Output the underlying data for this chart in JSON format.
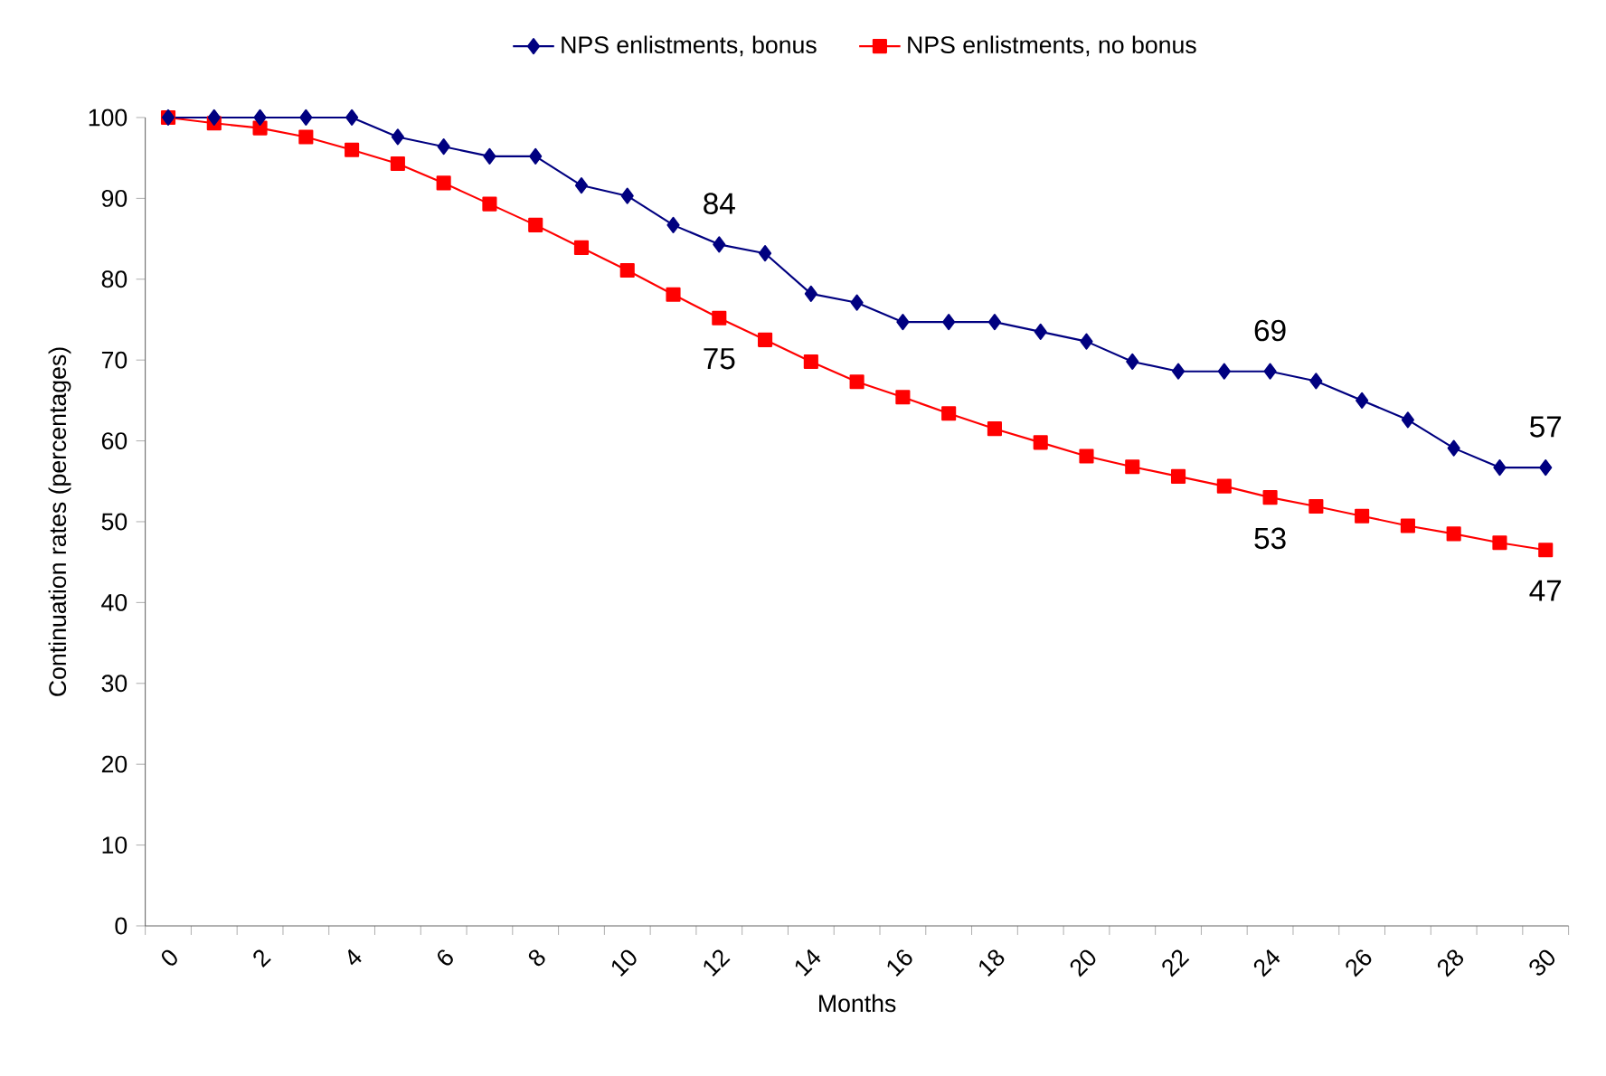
{
  "chart_data": {
    "type": "line",
    "xlabel": "Months",
    "ylabel": "Continuation rates (percentages)",
    "categories": [
      "0",
      null,
      "2",
      null,
      "4",
      null,
      "6",
      null,
      "8",
      null,
      "10",
      null,
      "12",
      null,
      "14",
      null,
      "16",
      null,
      "18",
      null,
      "20",
      null,
      "22",
      null,
      "24",
      null,
      "26",
      null,
      "28",
      null,
      "30"
    ],
    "series": [
      {
        "name": "NPS enlistments, bonus",
        "color": "#000080",
        "marker": "diamond",
        "values": [
          100,
          100,
          100,
          100,
          100,
          97.6,
          96.4,
          95.2,
          95.2,
          91.6,
          90.3,
          86.7,
          84.3,
          83.2,
          78.2,
          77.1,
          74.7,
          74.7,
          74.7,
          73.5,
          72.3,
          69.8,
          68.6,
          68.6,
          68.6,
          67.4,
          65.0,
          62.6,
          59.1,
          56.7,
          56.7
        ],
        "value_labels": [
          null,
          null,
          null,
          null,
          null,
          null,
          null,
          null,
          null,
          null,
          null,
          null,
          "84",
          null,
          null,
          null,
          null,
          null,
          null,
          null,
          null,
          null,
          null,
          null,
          "69",
          null,
          null,
          null,
          null,
          null,
          "57"
        ]
      },
      {
        "name": "NPS enlistments, no bonus",
        "color": "#ff0000",
        "marker": "square",
        "values": [
          100,
          99.3,
          98.7,
          97.6,
          96.0,
          94.3,
          91.9,
          89.3,
          86.7,
          83.9,
          81.1,
          78.1,
          75.2,
          72.5,
          69.8,
          67.3,
          65.4,
          63.4,
          61.5,
          59.8,
          58.1,
          56.8,
          55.6,
          54.4,
          53.0,
          51.9,
          50.7,
          49.5,
          48.5,
          47.4,
          46.5
        ],
        "value_labels": [
          null,
          null,
          null,
          null,
          null,
          null,
          null,
          null,
          null,
          null,
          null,
          null,
          "75",
          null,
          null,
          null,
          null,
          null,
          null,
          null,
          null,
          null,
          null,
          null,
          "53",
          null,
          null,
          null,
          null,
          null,
          "47"
        ]
      }
    ],
    "ylim": [
      0,
      100
    ],
    "yticks": [
      0,
      10,
      20,
      30,
      40,
      50,
      60,
      70,
      80,
      90,
      100
    ],
    "grid": false,
    "legend": "top",
    "line_style": "solid"
  }
}
